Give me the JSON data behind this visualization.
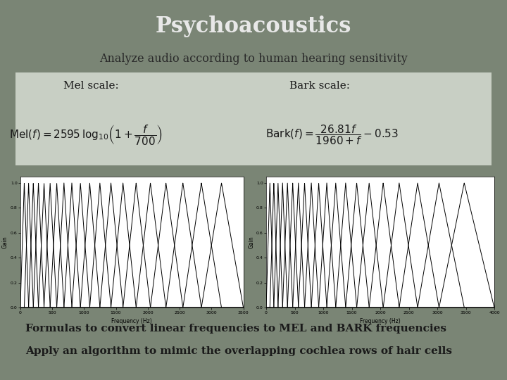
{
  "title": "Psychoacoustics",
  "subtitle": "Analyze audio according to human hearing sensitivity",
  "mel_label": "Mel scale:",
  "bark_label": "Bark scale:",
  "footer_line1": "Formulas to convert linear frequencies to MEL and BARK frequencies",
  "footer_line2": "Apply an algorithm to mimic the overlapping cochlea rows of hair cells",
  "bg_color": "#7d8878",
  "slide_bg": "#7a8575",
  "formula_bg": "#c8cfc4",
  "plot_bg": "#ffffff",
  "text_color": "#1a1a1a",
  "title_color": "#e8e8e8",
  "n_mel_filters": 20,
  "mel_fmax": 3500,
  "n_bark_filters": 20,
  "bark_fmax": 4000
}
